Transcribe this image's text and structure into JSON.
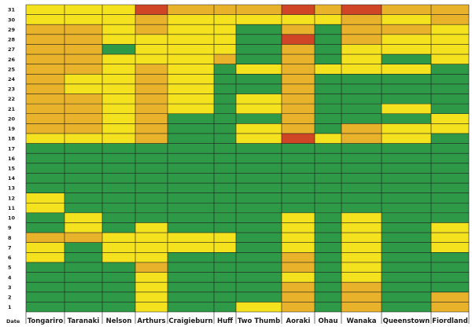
{
  "chart_data": {
    "type": "heatmap",
    "title": "",
    "xlabel": "",
    "ylabel": "",
    "corner_label": "Date",
    "columns": [
      "Tongariro",
      "Taranaki",
      "Nelson",
      "Arthurs",
      "Craigieburn",
      "Huff",
      "Two Thumb",
      "Aoraki",
      "Ohau",
      "Wanaka",
      "Queenstown",
      "Fiordland"
    ],
    "rows": [
      31,
      30,
      29,
      28,
      27,
      26,
      25,
      24,
      23,
      22,
      21,
      20,
      19,
      18,
      17,
      16,
      15,
      14,
      13,
      12,
      11,
      10,
      9,
      8,
      7,
      6,
      5,
      4,
      3,
      2,
      1
    ],
    "legend": {
      "1": "green",
      "2": "yellow",
      "3": "orange",
      "4": "red"
    },
    "colors": {
      "1": "#2e9a47",
      "2": "#f4e21e",
      "3": "#e8b32a",
      "4": "#cf4526"
    },
    "values": [
      [
        2,
        2,
        2,
        4,
        3,
        3,
        3,
        4,
        3,
        4,
        3,
        3
      ],
      [
        2,
        2,
        2,
        3,
        2,
        2,
        2,
        2,
        2,
        3,
        2,
        3
      ],
      [
        3,
        3,
        2,
        3,
        2,
        2,
        1,
        3,
        1,
        3,
        3,
        2
      ],
      [
        3,
        3,
        2,
        2,
        2,
        2,
        1,
        4,
        1,
        3,
        2,
        2
      ],
      [
        3,
        3,
        1,
        2,
        2,
        2,
        1,
        3,
        1,
        2,
        2,
        2
      ],
      [
        3,
        3,
        2,
        2,
        2,
        3,
        1,
        3,
        1,
        2,
        1,
        2
      ],
      [
        3,
        3,
        2,
        3,
        2,
        1,
        2,
        3,
        2,
        2,
        2,
        1
      ],
      [
        3,
        2,
        2,
        3,
        2,
        1,
        1,
        3,
        1,
        1,
        1,
        1
      ],
      [
        3,
        2,
        2,
        3,
        2,
        1,
        1,
        3,
        1,
        1,
        1,
        1
      ],
      [
        3,
        3,
        2,
        3,
        2,
        1,
        2,
        3,
        1,
        1,
        1,
        1
      ],
      [
        3,
        3,
        2,
        3,
        2,
        1,
        2,
        3,
        1,
        1,
        2,
        1
      ],
      [
        3,
        3,
        2,
        3,
        1,
        1,
        1,
        3,
        1,
        1,
        1,
        2
      ],
      [
        3,
        3,
        2,
        3,
        1,
        1,
        2,
        3,
        1,
        3,
        2,
        2
      ],
      [
        2,
        2,
        2,
        3,
        1,
        1,
        2,
        4,
        2,
        3,
        2,
        1
      ],
      [
        1,
        1,
        1,
        1,
        1,
        1,
        1,
        1,
        1,
        1,
        1,
        1
      ],
      [
        1,
        1,
        1,
        1,
        1,
        1,
        1,
        1,
        1,
        1,
        1,
        1
      ],
      [
        1,
        1,
        1,
        1,
        1,
        1,
        1,
        1,
        1,
        1,
        1,
        1
      ],
      [
        1,
        1,
        1,
        1,
        1,
        1,
        1,
        1,
        1,
        1,
        1,
        1
      ],
      [
        1,
        1,
        1,
        1,
        1,
        1,
        1,
        1,
        1,
        1,
        1,
        1
      ],
      [
        2,
        1,
        1,
        1,
        1,
        1,
        1,
        1,
        1,
        1,
        1,
        1
      ],
      [
        2,
        1,
        1,
        1,
        1,
        1,
        1,
        1,
        1,
        1,
        1,
        1
      ],
      [
        1,
        2,
        1,
        1,
        1,
        1,
        1,
        2,
        1,
        2,
        1,
        1
      ],
      [
        1,
        2,
        1,
        2,
        1,
        1,
        1,
        2,
        1,
        2,
        1,
        2
      ],
      [
        3,
        3,
        2,
        2,
        2,
        2,
        1,
        2,
        1,
        2,
        1,
        2
      ],
      [
        2,
        1,
        2,
        2,
        2,
        2,
        1,
        2,
        1,
        2,
        1,
        2
      ],
      [
        2,
        1,
        2,
        2,
        1,
        1,
        1,
        3,
        1,
        2,
        1,
        1
      ],
      [
        1,
        1,
        1,
        3,
        1,
        1,
        1,
        3,
        1,
        2,
        1,
        1
      ],
      [
        1,
        1,
        1,
        2,
        1,
        1,
        1,
        2,
        1,
        2,
        1,
        1
      ],
      [
        1,
        1,
        1,
        2,
        1,
        1,
        1,
        3,
        1,
        3,
        1,
        1
      ],
      [
        1,
        1,
        1,
        2,
        1,
        1,
        1,
        3,
        1,
        3,
        1,
        3
      ],
      [
        1,
        1,
        1,
        2,
        1,
        1,
        2,
        3,
        1,
        3,
        1,
        3
      ]
    ]
  }
}
